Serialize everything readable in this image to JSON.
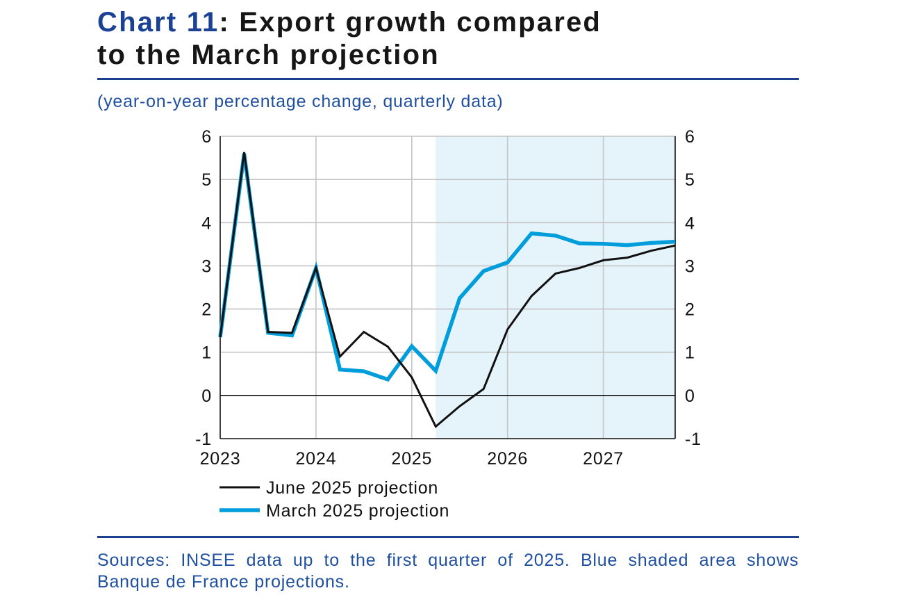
{
  "header": {
    "chart_number": "Chart 11",
    "title_line1": ": Export growth compared",
    "title_line2": "to the March projection"
  },
  "subtitle": "(year-on-year percentage change, quarterly data)",
  "footer": {
    "sources_line1": "Sources: INSEE data up to the first quarter of 2025. Blue shaded area shows",
    "sources_line2": "Banque de France projections."
  },
  "colors": {
    "accent_blue": "#1b4195",
    "text_blue": "#1f4f9f",
    "rule_blue": "#1c3f90"
  },
  "chart_data": {
    "type": "line",
    "x": [
      2023,
      2023.25,
      2023.5,
      2023.75,
      2024,
      2024.25,
      2024.5,
      2024.75,
      2025,
      2025.25,
      2025.5,
      2025.75,
      2026,
      2026.25,
      2026.5,
      2026.75,
      2027,
      2027.25,
      2027.5,
      2027.75
    ],
    "xlim": [
      2023,
      2027.75
    ],
    "x_tick_labels": [
      2023,
      2024,
      2025,
      2026,
      2027
    ],
    "ylim": [
      -1,
      6
    ],
    "y_ticks": [
      -1,
      0,
      1,
      2,
      3,
      4,
      5,
      6
    ],
    "secondary_y_axis": true,
    "grid": true,
    "legend": "bottom-left",
    "shaded_region": {
      "x_from": 2025.25,
      "x_to": 2027.75,
      "color": "#e5f4fb"
    },
    "series": [
      {
        "name": "June 2025 projection",
        "color": "#111111",
        "values": [
          1.35,
          5.63,
          1.47,
          1.45,
          2.95,
          0.9,
          1.47,
          1.13,
          0.42,
          -0.72,
          -0.25,
          0.15,
          1.53,
          2.3,
          2.82,
          2.95,
          3.13,
          3.19,
          3.35,
          3.47
        ]
      },
      {
        "name": "March 2025 projection",
        "color": "#009ddc",
        "values": [
          1.35,
          5.6,
          1.45,
          1.39,
          2.95,
          0.6,
          0.56,
          0.37,
          1.14,
          0.57,
          2.25,
          2.88,
          3.08,
          3.75,
          3.7,
          3.52,
          3.51,
          3.48,
          3.53,
          3.56
        ]
      }
    ]
  }
}
